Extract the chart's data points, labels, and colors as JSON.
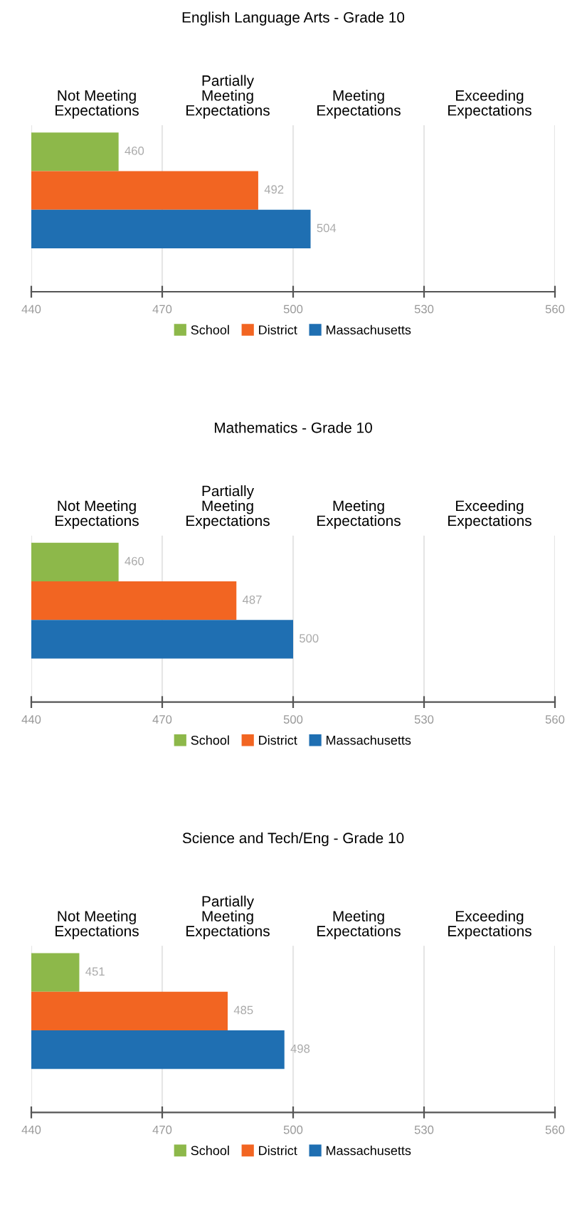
{
  "chart_data": [
    {
      "type": "bar",
      "orientation": "horizontal",
      "title": "English Language Arts - Grade 10",
      "categories": [
        null
      ],
      "series": [
        {
          "name": "School",
          "color": "#8db84a",
          "values": [
            460
          ]
        },
        {
          "name": "District",
          "color": "#f26522",
          "values": [
            492
          ]
        },
        {
          "name": "Massachusetts",
          "color": "#1f6fb2",
          "values": [
            504
          ]
        }
      ],
      "annotations": [
        "Not Meeting\nExpectations",
        "Partially\nMeeting\nExpectations",
        "Meeting\nExpectations",
        "Exceeding\nExpectations"
      ],
      "xlim": [
        440,
        560
      ],
      "xticks": [
        440,
        470,
        500,
        530,
        560
      ],
      "grid": "x",
      "legend": "bottom",
      "data_labels": true
    },
    {
      "type": "bar",
      "orientation": "horizontal",
      "title": "Mathematics - Grade 10",
      "categories": [
        null
      ],
      "series": [
        {
          "name": "School",
          "color": "#8db84a",
          "values": [
            460
          ]
        },
        {
          "name": "District",
          "color": "#f26522",
          "values": [
            487
          ]
        },
        {
          "name": "Massachusetts",
          "color": "#1f6fb2",
          "values": [
            500
          ]
        }
      ],
      "annotations": [
        "Not Meeting\nExpectations",
        "Partially\nMeeting\nExpectations",
        "Meeting\nExpectations",
        "Exceeding\nExpectations"
      ],
      "xlim": [
        440,
        560
      ],
      "xticks": [
        440,
        470,
        500,
        530,
        560
      ],
      "grid": "x",
      "legend": "bottom",
      "data_labels": true
    },
    {
      "type": "bar",
      "orientation": "horizontal",
      "title": "Science and Tech/Eng - Grade 10",
      "categories": [
        null
      ],
      "series": [
        {
          "name": "School",
          "color": "#8db84a",
          "values": [
            451
          ]
        },
        {
          "name": "District",
          "color": "#f26522",
          "values": [
            485
          ]
        },
        {
          "name": "Massachusetts",
          "color": "#1f6fb2",
          "values": [
            498
          ]
        }
      ],
      "annotations": [
        "Not Meeting\nExpectations",
        "Partially\nMeeting\nExpectations",
        "Meeting\nExpectations",
        "Exceeding\nExpectations"
      ],
      "xlim": [
        440,
        560
      ],
      "xticks": [
        440,
        470,
        500,
        530,
        560
      ],
      "grid": "x",
      "legend": "bottom",
      "data_labels": true
    }
  ]
}
